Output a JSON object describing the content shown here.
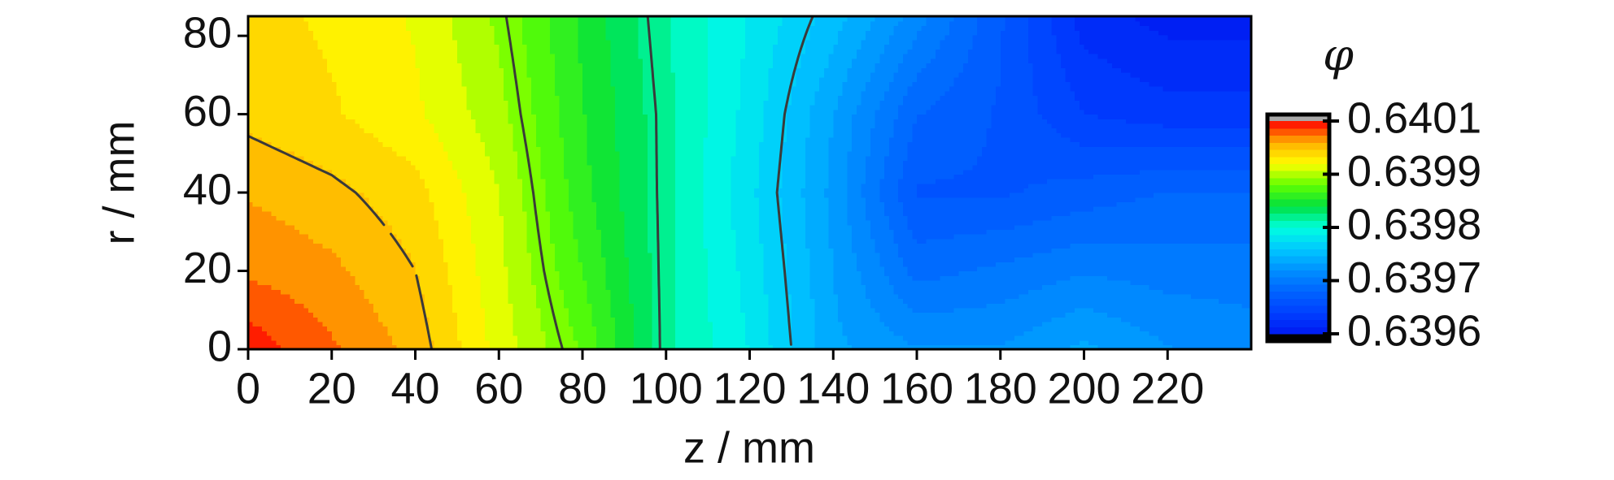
{
  "chart_data": {
    "type": "contour",
    "xlabel": "z / mm",
    "ylabel": "r / mm",
    "colorbar_label": "φ",
    "x": [
      0,
      20,
      40,
      60,
      80,
      100,
      120,
      140,
      160,
      180,
      200,
      220,
      240
    ],
    "y": [
      0,
      20,
      40,
      60,
      85
    ],
    "z": [
      [
        0.640051,
        0.640028,
        0.640005,
        0.639959,
        0.639917,
        0.639848,
        0.639812,
        0.639756,
        0.639738,
        0.639738,
        0.639756,
        0.639738,
        0.639729
      ],
      [
        0.640023,
        0.640014,
        0.639996,
        0.639954,
        0.639904,
        0.639848,
        0.639807,
        0.639752,
        0.639701,
        0.63971,
        0.63972,
        0.639715,
        0.639715
      ],
      [
        0.640009,
        0.64,
        0.639986,
        0.63995,
        0.639894,
        0.639848,
        0.639802,
        0.639747,
        0.639674,
        0.639674,
        0.639683,
        0.639692,
        0.639692
      ],
      [
        0.639991,
        0.639982,
        0.639968,
        0.63994,
        0.63989,
        0.639848,
        0.639807,
        0.639752,
        0.639692,
        0.639674,
        0.639646,
        0.639637,
        0.639637
      ],
      [
        0.639986,
        0.639977,
        0.639963,
        0.639931,
        0.639885,
        0.639844,
        0.639812,
        0.639775,
        0.639729,
        0.639678,
        0.639623,
        0.639609,
        0.639609
      ]
    ],
    "contour_levels": [
      0.639996,
      0.639927,
      0.639853,
      0.639784
    ],
    "contour_color": "#3a3a3a",
    "xlim": [
      0,
      240
    ],
    "xticks": [
      0,
      20,
      40,
      60,
      80,
      100,
      120,
      140,
      160,
      180,
      200,
      220
    ],
    "ylim": [
      0,
      85
    ],
    "yticks": [
      0,
      20,
      40,
      60,
      80
    ],
    "clim": [
      0.6396,
      0.640056
    ],
    "cticks": [
      0.6396,
      {
        "value": 0.639714,
        "label": "0.6397"
      },
      {
        "value": 0.639828,
        "label": "0.6398"
      },
      {
        "value": 0.639942,
        "label": "0.6399"
      },
      {
        "value": 0.640056,
        "label": "0.6401"
      }
    ],
    "colormap": [
      "#0018f0",
      "#0040ff",
      "#0064ff",
      "#0090ff",
      "#00c8ff",
      "#00ffe0",
      "#00e040",
      "#60ff00",
      "#ffff00",
      "#ffb000",
      "#ff0000"
    ]
  }
}
